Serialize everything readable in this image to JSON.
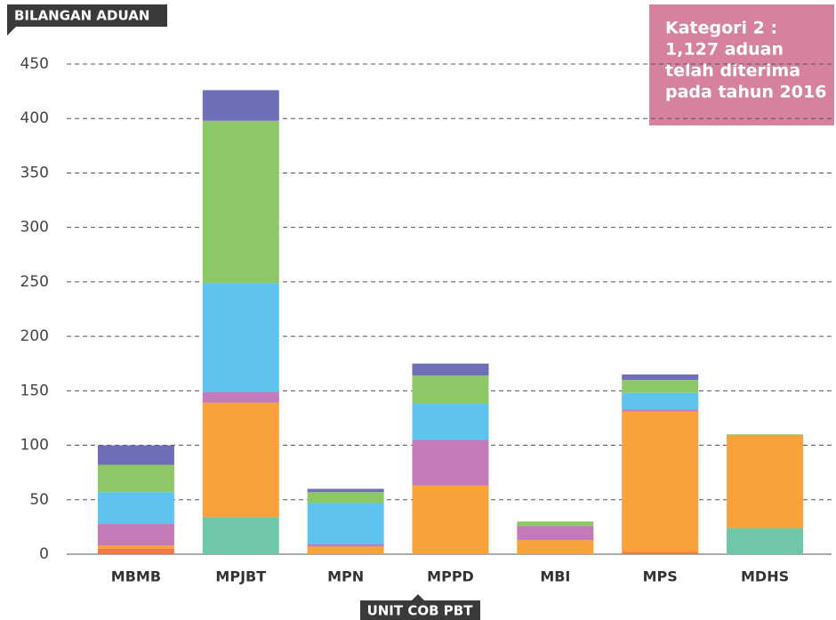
{
  "chart_data": {
    "type": "stacked_bar",
    "y_axis_label": "BILANGAN ADUAN",
    "x_axis_label": "UNIT COB PBT",
    "annotation": [
      "Kategori 2 :",
      "1,127 aduan",
      "telah diterima",
      "pada tahun 2016"
    ],
    "categories": [
      "MBMB",
      "MPJBT",
      "MPN",
      "MPPD",
      "MBI",
      "MPS",
      "MDHS"
    ],
    "series": [
      {
        "color": "#6fc7a8",
        "values": [
          0,
          34,
          0,
          0,
          0,
          0,
          24
        ]
      },
      {
        "color": "#f47a4a",
        "values": [
          5,
          0,
          0,
          0,
          0,
          2,
          0
        ]
      },
      {
        "color": "#f9a13a",
        "values": [
          3,
          105,
          7,
          63,
          13,
          129,
          85
        ]
      },
      {
        "color": "#c27bb8",
        "values": [
          20,
          10,
          2,
          42,
          13,
          2,
          0
        ]
      },
      {
        "color": "#5ec4ef",
        "values": [
          29,
          100,
          38,
          33,
          0,
          15,
          0
        ]
      },
      {
        "color": "#8ec866",
        "values": [
          25,
          149,
          10,
          26,
          4,
          12,
          1
        ]
      },
      {
        "color": "#6e6fb6",
        "values": [
          18,
          28,
          3,
          11,
          0,
          5,
          0
        ]
      }
    ],
    "ylim": [
      0,
      450
    ],
    "yticks": [
      0,
      50,
      100,
      150,
      200,
      250,
      300,
      350,
      400,
      450
    ],
    "grid": true
  }
}
